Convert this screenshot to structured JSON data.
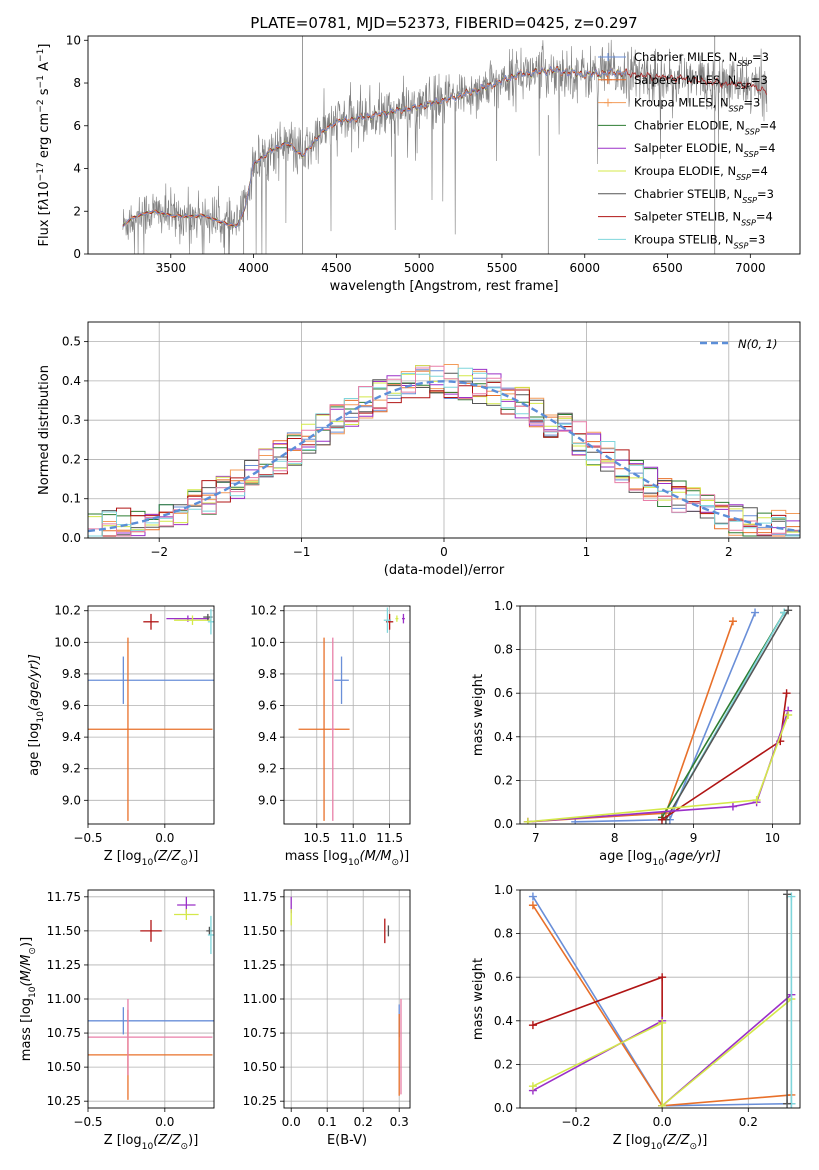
{
  "colors": {
    "chabrier_miles": "#6a8fd8",
    "salpeter_miles": "#e8702a",
    "kroupa_miles": "#f39c5a",
    "chabrier_elodie": "#2e7d32",
    "salpeter_elodie": "#9b30c8",
    "kroupa_elodie": "#d4e84a",
    "chabrier_stelib": "#555555",
    "salpeter_stelib": "#b01414",
    "kroupa_stelib": "#7fd6dc",
    "data": "#808080",
    "pink": "#e87fa8",
    "normal": "#5b8ed8",
    "grid": "#b0b0b0"
  },
  "chart_data": [
    {
      "id": "spectrum",
      "type": "line",
      "title": "PLATE=0781, MJD=52373, FIBERID=0425, z=0.297",
      "xlabel": "wavelength [Angstrom, rest frame]",
      "ylabel_parts": [
        "Flux [f",
        "λ",
        "10",
        "−17",
        " erg cm",
        "−2",
        " s",
        "−1",
        " A",
        "−1",
        "]"
      ],
      "xlim": [
        3000,
        7300
      ],
      "ylim": [
        0,
        10.2
      ],
      "xticks": [
        3500,
        4000,
        4500,
        5000,
        5500,
        6000,
        6500,
        7000
      ],
      "yticks": [
        0,
        2,
        4,
        6,
        8,
        10
      ],
      "grid": false,
      "legend_position": "top-right",
      "legend": [
        {
          "base": "Chabrier MILES, N",
          "sub": "SSP",
          "tail": "=3",
          "color": "chabrier_miles"
        },
        {
          "base": "Salpeter MILES, N",
          "sub": "SSP",
          "tail": "=3",
          "color": "salpeter_miles"
        },
        {
          "base": "Kroupa MILES, N",
          "sub": "SSP",
          "tail": "=3",
          "color": "kroupa_miles"
        },
        {
          "base": "Chabrier ELODIE, N",
          "sub": "SSP",
          "tail": "=4",
          "color": "chabrier_elodie"
        },
        {
          "base": "Salpeter ELODIE, N",
          "sub": "SSP",
          "tail": "=4",
          "color": "salpeter_elodie"
        },
        {
          "base": "Kroupa ELODIE, N",
          "sub": "SSP",
          "tail": "=4",
          "color": "kroupa_elodie"
        },
        {
          "base": "Chabrier STELIB, N",
          "sub": "SSP",
          "tail": "=3",
          "color": "chabrier_stelib"
        },
        {
          "base": "Salpeter STELIB, N",
          "sub": "SSP",
          "tail": "=4",
          "color": "salpeter_stelib"
        },
        {
          "base": "Kroupa STELIB, N",
          "sub": "SSP",
          "tail": "=3",
          "color": "kroupa_stelib"
        }
      ],
      "model_continuum": {
        "x": [
          3210,
          3250,
          3300,
          3400,
          3500,
          3600,
          3700,
          3800,
          3900,
          3950,
          4000,
          4100,
          4200,
          4300,
          4400,
          4500,
          4600,
          4800,
          5000,
          5200,
          5400,
          5600,
          5800,
          6000,
          6200,
          6400,
          6600,
          6800,
          7000,
          7100
        ],
        "y": [
          1.3,
          1.6,
          1.8,
          2.0,
          1.8,
          1.75,
          1.8,
          1.5,
          1.3,
          2.2,
          4.2,
          4.8,
          5.2,
          4.6,
          5.6,
          6.2,
          6.3,
          6.6,
          6.9,
          7.3,
          7.8,
          8.4,
          8.6,
          8.4,
          8.5,
          8.3,
          8.2,
          8.0,
          7.9,
          7.6
        ]
      }
    },
    {
      "id": "residuals",
      "type": "step",
      "xlabel": "(data-model)/error",
      "ylabel": "Normed distribution",
      "xlim": [
        -2.5,
        2.5
      ],
      "ylim": [
        0,
        0.55
      ],
      "xticks": [
        -2,
        -1,
        0,
        1,
        2
      ],
      "yticks": [
        0.0,
        0.1,
        0.2,
        0.3,
        0.4,
        0.5
      ],
      "grid": true,
      "legend_position": "top-right",
      "legend": [
        {
          "label": "N(0, 1)",
          "color": "normal",
          "style": "dashed"
        }
      ],
      "bin_width": 0.1
    },
    {
      "id": "age_vs_Z",
      "type": "errorbar",
      "xlabel_parts": [
        "Z [log",
        "10",
        "(Z/Z",
        "⊙",
        ")]"
      ],
      "ylabel_parts": [
        "age  [log",
        "10",
        "(age/yr)]"
      ],
      "xlim": [
        -0.5,
        0.32
      ],
      "ylim": [
        8.85,
        10.23
      ],
      "xticks": [
        -0.5,
        0.0
      ],
      "yticks": [
        9.0,
        9.2,
        9.4,
        9.6,
        9.8,
        10.0,
        10.2
      ],
      "grid": true,
      "points": [
        {
          "x": -0.27,
          "y": 9.76,
          "xerr": 0.59,
          "yerr": 0.15,
          "color": "chabrier_miles"
        },
        {
          "x": -0.24,
          "y": 9.45,
          "xerr": 0.55,
          "yerr": 0.58,
          "color": "salpeter_miles"
        },
        {
          "x": -0.09,
          "y": 10.13,
          "xerr": 0.05,
          "yerr": 0.05,
          "color": "salpeter_stelib"
        },
        {
          "x": 0.15,
          "y": 10.15,
          "xerr": 0.14,
          "yerr": 0.02,
          "color": "salpeter_elodie"
        },
        {
          "x": 0.18,
          "y": 10.14,
          "xerr": 0.12,
          "yerr": 0.03,
          "color": "kroupa_elodie"
        },
        {
          "x": 0.28,
          "y": 10.16,
          "xerr": 0.03,
          "yerr": 0.02,
          "color": "chabrier_stelib"
        },
        {
          "x": 0.3,
          "y": 10.13,
          "xerr": 0.02,
          "yerr": 0.08,
          "color": "kroupa_stelib"
        }
      ]
    },
    {
      "id": "age_vs_mass",
      "type": "errorbar",
      "xlabel_parts": [
        "mass [log",
        "10",
        "(M/M",
        "⊙",
        ")]"
      ],
      "xlim": [
        10.05,
        11.78
      ],
      "ylim": [
        8.85,
        10.23
      ],
      "xticks": [
        10.5,
        11.0,
        11.5
      ],
      "yticks": [
        9.0,
        9.2,
        9.4,
        9.6,
        9.8,
        10.0,
        10.2
      ],
      "grid": true,
      "points": [
        {
          "x": 10.84,
          "y": 9.76,
          "xerr": 0.1,
          "yerr": 0.15,
          "color": "chabrier_miles"
        },
        {
          "x": 10.6,
          "y": 9.45,
          "xerr": 0.35,
          "yerr": 0.58,
          "color": "salpeter_miles"
        },
        {
          "x": 10.72,
          "y": 9.45,
          "xerr": 0.03,
          "yerr": 0.58,
          "color": "pink"
        },
        {
          "x": 11.5,
          "y": 10.13,
          "xerr": 0.05,
          "yerr": 0.05,
          "color": "salpeter_stelib"
        },
        {
          "x": 11.69,
          "y": 10.15,
          "xerr": 0.02,
          "yerr": 0.03,
          "color": "salpeter_elodie"
        },
        {
          "x": 11.6,
          "y": 10.15,
          "xerr": 0.02,
          "yerr": 0.02,
          "color": "kroupa_elodie"
        },
        {
          "x": 11.47,
          "y": 10.14,
          "xerr": 0.05,
          "yerr": 0.08,
          "color": "kroupa_stelib"
        }
      ]
    },
    {
      "id": "weight_vs_age",
      "type": "line",
      "xlabel_parts": [
        "age  [log",
        "10",
        "(age/yr)]"
      ],
      "ylabel": "mass weight",
      "xlim": [
        6.8,
        10.35
      ],
      "ylim": [
        0,
        1.0
      ],
      "xticks": [
        7,
        8,
        9,
        10
      ],
      "yticks": [
        0.0,
        0.2,
        0.4,
        0.6,
        0.8,
        1.0
      ],
      "grid": true,
      "series": [
        {
          "color": "chabrier_miles",
          "x": [
            7.5,
            8.7,
            9.78
          ],
          "y": [
            0.01,
            0.02,
            0.97
          ]
        },
        {
          "color": "salpeter_miles",
          "x": [
            6.9,
            8.65,
            9.5
          ],
          "y": [
            0.01,
            0.05,
            0.93
          ]
        },
        {
          "color": "chabrier_elodie",
          "x": [
            8.6,
            10.15
          ],
          "y": [
            0.03,
            0.97
          ]
        },
        {
          "color": "kroupa_stelib",
          "x": [
            8.65,
            10.15
          ],
          "y": [
            0.02,
            0.97
          ]
        },
        {
          "color": "chabrier_stelib",
          "x": [
            8.65,
            10.2
          ],
          "y": [
            0.02,
            0.98
          ]
        },
        {
          "color": "salpeter_stelib",
          "x": [
            8.6,
            10.1,
            10.18
          ],
          "y": [
            0.02,
            0.38,
            0.6
          ]
        },
        {
          "color": "salpeter_elodie",
          "x": [
            6.9,
            9.5,
            9.8,
            10.2
          ],
          "y": [
            0.01,
            0.08,
            0.1,
            0.52
          ]
        },
        {
          "color": "kroupa_elodie",
          "x": [
            6.9,
            9.8,
            10.2
          ],
          "y": [
            0.01,
            0.11,
            0.5
          ]
        }
      ]
    },
    {
      "id": "mass_vs_Z",
      "type": "errorbar",
      "xlabel_parts": [
        "Z [log",
        "10",
        "(Z/Z",
        "⊙",
        ")]"
      ],
      "ylabel_parts": [
        "mass [log",
        "10",
        "(M/M",
        "⊙",
        ")]"
      ],
      "xlim": [
        -0.5,
        0.32
      ],
      "ylim": [
        10.2,
        11.8
      ],
      "xticks": [
        -0.5,
        0.0
      ],
      "yticks": [
        10.25,
        10.5,
        10.75,
        11.0,
        11.25,
        11.5,
        11.75
      ],
      "grid": true,
      "points": [
        {
          "x": -0.27,
          "y": 10.84,
          "xerr": 0.59,
          "yerr": 0.1,
          "color": "chabrier_miles"
        },
        {
          "x": -0.24,
          "y": 10.59,
          "xerr": 0.55,
          "yerr": 0.33,
          "color": "salpeter_miles"
        },
        {
          "x": -0.24,
          "y": 10.72,
          "xerr": 0.55,
          "yerr": 0.28,
          "color": "pink"
        },
        {
          "x": -0.09,
          "y": 11.5,
          "xerr": 0.07,
          "yerr": 0.08,
          "color": "salpeter_stelib"
        },
        {
          "x": 0.14,
          "y": 11.69,
          "xerr": 0.06,
          "yerr": 0.06,
          "color": "salpeter_elodie"
        },
        {
          "x": 0.14,
          "y": 11.62,
          "xerr": 0.08,
          "yerr": 0.04,
          "color": "kroupa_elodie"
        },
        {
          "x": 0.29,
          "y": 11.5,
          "xerr": 0.02,
          "yerr": 0.03,
          "color": "chabrier_stelib"
        },
        {
          "x": 0.3,
          "y": 11.47,
          "xerr": 0.02,
          "yerr": 0.14,
          "color": "kroupa_stelib"
        }
      ]
    },
    {
      "id": "mass_vs_ebv",
      "type": "errorbar",
      "xlabel": "E(B-V)",
      "xlim": [
        -0.02,
        0.33
      ],
      "ylim": [
        10.2,
        11.8
      ],
      "xticks": [
        0.0,
        0.1,
        0.2,
        0.3
      ],
      "yticks": [
        10.25,
        10.5,
        10.75,
        11.0,
        11.25,
        11.5,
        11.75
      ],
      "grid": true,
      "points": [
        {
          "x": 0.0,
          "y": 11.69,
          "xerr": 0.0,
          "yerr": 0.06,
          "color": "salpeter_elodie"
        },
        {
          "x": 0.0,
          "y": 11.6,
          "xerr": 0.0,
          "yerr": 0.06,
          "color": "kroupa_elodie"
        },
        {
          "x": 0.26,
          "y": 11.5,
          "xerr": 0.0,
          "yerr": 0.09,
          "color": "salpeter_stelib"
        },
        {
          "x": 0.27,
          "y": 11.5,
          "xerr": 0.0,
          "yerr": 0.04,
          "color": "chabrier_stelib"
        },
        {
          "x": 0.3,
          "y": 10.84,
          "xerr": 0.0,
          "yerr": 0.12,
          "color": "chabrier_miles"
        },
        {
          "x": 0.305,
          "y": 10.65,
          "xerr": 0.0,
          "yerr": 0.35,
          "color": "pink"
        },
        {
          "x": 0.3,
          "y": 10.59,
          "xerr": 0.0,
          "yerr": 0.3,
          "color": "salpeter_miles"
        }
      ]
    },
    {
      "id": "weight_vs_Z",
      "type": "line",
      "xlabel_parts": [
        "Z [log",
        "10",
        "(Z/Z",
        "⊙",
        ")]"
      ],
      "ylabel": "mass weight",
      "xlim": [
        -0.33,
        0.32
      ],
      "ylim": [
        0,
        1.0
      ],
      "xticks": [
        -0.2,
        0.0,
        0.2
      ],
      "yticks": [
        0.0,
        0.2,
        0.4,
        0.6,
        0.8,
        1.0
      ],
      "grid": true,
      "series": [
        {
          "color": "chabrier_miles",
          "x": [
            -0.3,
            0.0,
            0.3
          ],
          "y": [
            0.97,
            0.01,
            0.02
          ]
        },
        {
          "color": "salpeter_miles",
          "x": [
            -0.3,
            0.0,
            0.3
          ],
          "y": [
            0.93,
            0.01,
            0.06
          ]
        },
        {
          "color": "salpeter_stelib",
          "x": [
            -0.3,
            0.0,
            0.0
          ],
          "y": [
            0.38,
            0.6,
            0.01
          ]
        },
        {
          "color": "salpeter_elodie",
          "x": [
            -0.3,
            0.0,
            0.0,
            0.3
          ],
          "y": [
            0.08,
            0.4,
            0.01,
            0.52
          ]
        },
        {
          "color": "kroupa_elodie",
          "x": [
            -0.3,
            0.0,
            0.0,
            0.3
          ],
          "y": [
            0.1,
            0.39,
            0.01,
            0.5
          ]
        },
        {
          "color": "kroupa_stelib",
          "x": [
            0.3,
            0.3
          ],
          "y": [
            0.02,
            0.97
          ]
        },
        {
          "color": "chabrier_stelib",
          "x": [
            0.29,
            0.29
          ],
          "y": [
            0.02,
            0.98
          ]
        }
      ]
    }
  ]
}
